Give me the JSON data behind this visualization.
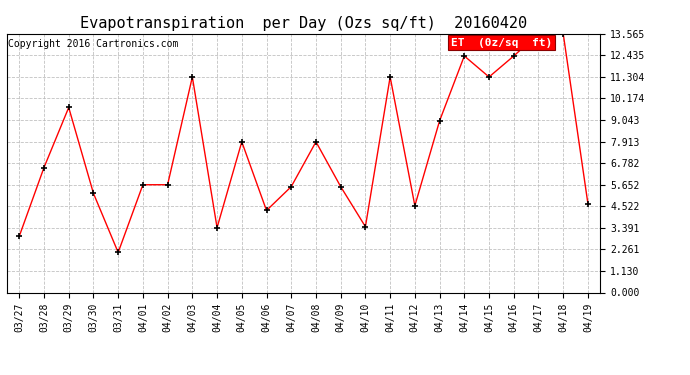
{
  "title": "Evapotranspiration  per Day (Ozs sq/ft)  20160420",
  "copyright": "Copyright 2016 Cartronics.com",
  "legend_label": "ET  (0z/sq  ft)",
  "x_labels": [
    "03/27",
    "03/28",
    "03/29",
    "03/30",
    "03/31",
    "04/01",
    "04/02",
    "04/03",
    "04/04",
    "04/05",
    "04/06",
    "04/07",
    "04/08",
    "04/09",
    "04/10",
    "04/11",
    "04/12",
    "04/13",
    "04/14",
    "04/15",
    "04/16",
    "04/17",
    "04/18",
    "04/19"
  ],
  "y_values": [
    2.95,
    6.55,
    9.7,
    5.2,
    2.1,
    5.65,
    5.65,
    11.3,
    3.4,
    7.9,
    4.3,
    5.55,
    7.9,
    5.55,
    3.45,
    11.3,
    4.55,
    9.0,
    12.4,
    11.3,
    12.4,
    13.565,
    13.565,
    4.65
  ],
  "line_color": "red",
  "marker": "+",
  "marker_color": "black",
  "bg_color": "white",
  "grid_color": "#bbbbbb",
  "yticks": [
    0.0,
    1.13,
    2.261,
    3.391,
    4.522,
    5.652,
    6.782,
    7.913,
    9.043,
    10.174,
    11.304,
    12.435,
    13.565
  ],
  "ylim": [
    0.0,
    13.565
  ],
  "legend_bg": "red",
  "legend_text_color": "white",
  "title_fontsize": 11,
  "tick_fontsize": 7,
  "copyright_fontsize": 7,
  "legend_fontsize": 8
}
